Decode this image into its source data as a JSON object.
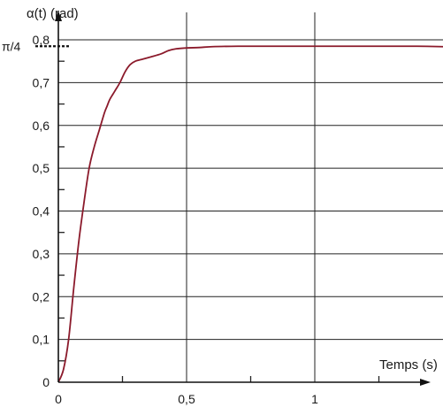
{
  "chart_data": {
    "type": "line",
    "title": "",
    "ylabel": "α(t) (rad)",
    "xlabel": "Temps (s)",
    "xlim": [
      0,
      1.5
    ],
    "ylim": [
      0,
      0.8
    ],
    "grid": true,
    "x_ticks": [
      {
        "value": 0,
        "label": "0"
      },
      {
        "value": 0.5,
        "label": "0,5"
      },
      {
        "value": 1,
        "label": "1"
      }
    ],
    "y_ticks": [
      {
        "value": 0,
        "label": "0"
      },
      {
        "value": 0.1,
        "label": "0,1"
      },
      {
        "value": 0.2,
        "label": "0,2"
      },
      {
        "value": 0.3,
        "label": "0,3"
      },
      {
        "value": 0.4,
        "label": "0,4"
      },
      {
        "value": 0.5,
        "label": "0,5"
      },
      {
        "value": 0.6,
        "label": "0,6"
      },
      {
        "value": 0.7,
        "label": "0,7"
      },
      {
        "value": 0.8,
        "label": "0,8"
      }
    ],
    "reference_line": {
      "value": 0.785,
      "label": "π/4"
    },
    "series": [
      {
        "color": "#8b1a2b",
        "x": [
          0,
          0.02,
          0.04,
          0.06,
          0.08,
          0.1,
          0.12,
          0.14,
          0.16,
          0.18,
          0.19,
          0.2,
          0.22,
          0.24,
          0.26,
          0.28,
          0.3,
          0.33,
          0.36,
          0.4,
          0.43,
          0.46,
          0.5,
          0.55,
          0.6,
          0.7,
          0.8,
          0.9,
          1.0,
          1.1,
          1.2,
          1.3,
          1.4,
          1.5
        ],
        "y": [
          0,
          0.03,
          0.1,
          0.22,
          0.33,
          0.42,
          0.5,
          0.55,
          0.59,
          0.63,
          0.645,
          0.66,
          0.68,
          0.7,
          0.725,
          0.742,
          0.75,
          0.755,
          0.76,
          0.767,
          0.775,
          0.779,
          0.781,
          0.782,
          0.784,
          0.785,
          0.785,
          0.785,
          0.785,
          0.785,
          0.785,
          0.785,
          0.785,
          0.784
        ]
      }
    ]
  }
}
